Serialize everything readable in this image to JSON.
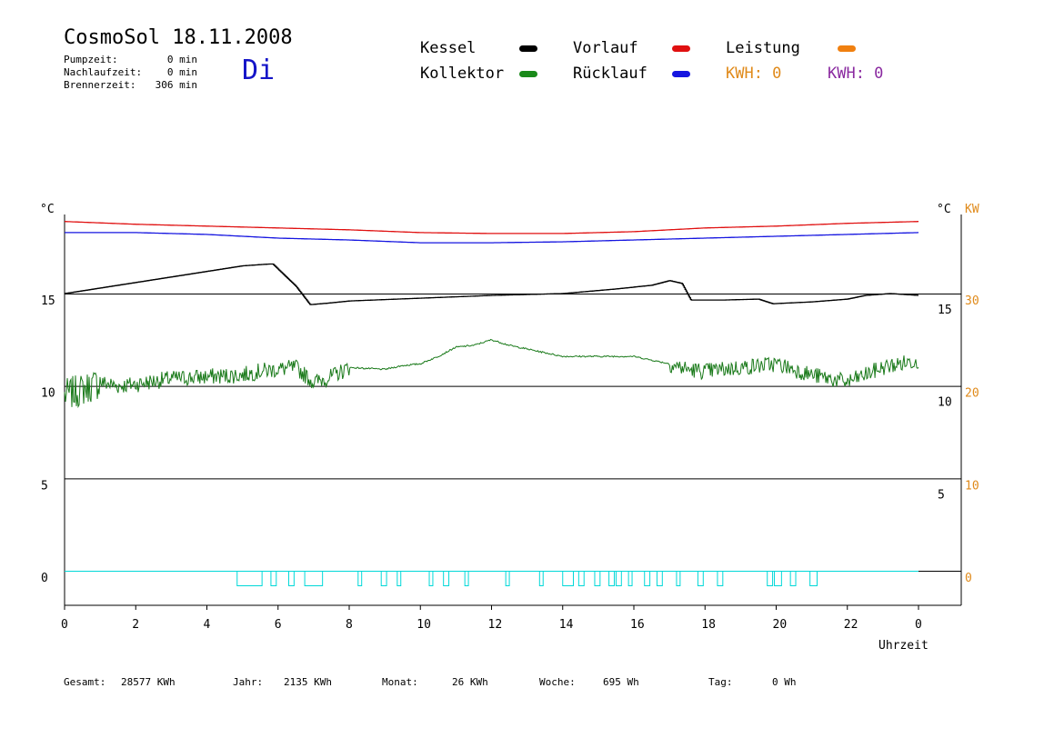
{
  "header": {
    "title": "CosmoSol 18.11.2008",
    "weekday": "Di",
    "stats": [
      {
        "label": "Pumpzeit:",
        "value": "0 min"
      },
      {
        "label": "Nachlaufzeit:",
        "value": "0 min"
      },
      {
        "label": "Brennerzeit:",
        "value": "306 min"
      }
    ]
  },
  "legend": {
    "items": [
      {
        "label": "Kessel",
        "color": "#000000"
      },
      {
        "label": "Kollektor",
        "color": "#1a8a1a"
      },
      {
        "label": "Vorlauf",
        "color": "#e01010"
      },
      {
        "label": "Rücklauf",
        "color": "#1515e0"
      },
      {
        "label": "Leistung",
        "color": "#f08010"
      }
    ],
    "kwh_orange": "KWH: 0",
    "kwh_purple": "KWH: 0",
    "orange_color": "#e08a1a",
    "purple_color": "#8a2aa0"
  },
  "footer": [
    {
      "label": "Gesamt:",
      "value": "28577 KWh"
    },
    {
      "label": "Jahr:",
      "value": "2135 KWh"
    },
    {
      "label": "Monat:",
      "value": "26 KWh"
    },
    {
      "label": "Woche:",
      "value": "695 Wh"
    },
    {
      "label": "Tag:",
      "value": "0 Wh"
    }
  ],
  "chart_data": {
    "type": "line",
    "xlabel": "Uhrzeit",
    "ylabel_left": "°C",
    "ylabel_right": "°C",
    "ylabel_right2": "KW",
    "xlim": [
      0,
      24
    ],
    "x_ticks": [
      "0",
      "2",
      "4",
      "6",
      "8",
      "10",
      "12",
      "14",
      "16",
      "18",
      "20",
      "22",
      "0"
    ],
    "left_ticks": [
      "15",
      "10",
      "5",
      "0"
    ],
    "right_ticks": [
      "15",
      "10",
      "5"
    ],
    "kw_ticks": [
      "30",
      "20",
      "10",
      "0"
    ],
    "series": [
      {
        "name": "Vorlauf",
        "color": "#e01010",
        "x": [
          0,
          2,
          4,
          6,
          8,
          10,
          12,
          14,
          16,
          18,
          20,
          22,
          24
        ],
        "y": [
          18.9,
          18.75,
          18.65,
          18.55,
          18.45,
          18.3,
          18.25,
          18.25,
          18.35,
          18.55,
          18.65,
          18.8,
          18.9
        ]
      },
      {
        "name": "Rücklauf",
        "color": "#1515e0",
        "x": [
          0,
          2,
          4,
          6,
          8,
          10,
          12,
          14,
          16,
          18,
          20,
          22,
          24
        ],
        "y": [
          18.3,
          18.3,
          18.2,
          18.0,
          17.9,
          17.75,
          17.75,
          17.8,
          17.9,
          18.0,
          18.1,
          18.2,
          18.3
        ]
      },
      {
        "name": "Kessel",
        "color": "#000000",
        "x": [
          0,
          1,
          2,
          3,
          4,
          5,
          5.75,
          5.85,
          6.5,
          6.9,
          7.5,
          8,
          10,
          12,
          14,
          15.5,
          16.5,
          17.0,
          17.35,
          17.6,
          18.5,
          19.5,
          19.9,
          21,
          22,
          22.5,
          23.2,
          24
        ],
        "y": [
          15.0,
          15.3,
          15.6,
          15.9,
          16.2,
          16.5,
          16.6,
          16.6,
          15.4,
          14.4,
          14.5,
          14.6,
          14.75,
          14.9,
          15.0,
          15.25,
          15.45,
          15.7,
          15.55,
          14.65,
          14.65,
          14.7,
          14.45,
          14.55,
          14.7,
          14.9,
          15.0,
          14.9
        ]
      },
      {
        "name": "Kollektor",
        "color": "#1a7a1a",
        "x": [
          0,
          0.5,
          1,
          1.5,
          2,
          3,
          4,
          5,
          5.5,
          6,
          6.5,
          7,
          7.5,
          8,
          9,
          9.5,
          10,
          10.5,
          11,
          11.5,
          12,
          12.5,
          13,
          14,
          15,
          16,
          17,
          17.5,
          18,
          19,
          20,
          21,
          22,
          23,
          23.5,
          24
        ],
        "y": [
          9.5,
          9.8,
          10.2,
          10.0,
          10.1,
          10.4,
          10.5,
          10.6,
          10.8,
          10.9,
          11.0,
          10.2,
          10.5,
          11.0,
          10.9,
          11.1,
          11.2,
          11.6,
          12.1,
          12.2,
          12.5,
          12.2,
          12.0,
          11.6,
          11.6,
          11.6,
          11.2,
          10.9,
          10.8,
          11.0,
          11.2,
          10.6,
          10.2,
          11.0,
          11.2,
          11.4
        ]
      }
    ],
    "pump_intervals": [
      [
        4.85,
        5.55
      ],
      [
        5.8,
        5.95
      ],
      [
        6.3,
        6.45
      ],
      [
        6.75,
        7.25
      ],
      [
        8.25,
        8.35
      ],
      [
        8.9,
        9.05
      ],
      [
        9.35,
        9.45
      ],
      [
        10.25,
        10.35
      ],
      [
        10.65,
        10.8
      ],
      [
        11.25,
        11.35
      ],
      [
        12.4,
        12.5
      ],
      [
        13.35,
        13.45
      ],
      [
        14.0,
        14.3
      ],
      [
        14.45,
        14.6
      ],
      [
        14.9,
        15.05
      ],
      [
        15.3,
        15.45
      ],
      [
        15.5,
        15.65
      ],
      [
        15.85,
        15.95
      ],
      [
        16.3,
        16.45
      ],
      [
        16.65,
        16.8
      ],
      [
        17.2,
        17.3
      ],
      [
        17.8,
        17.95
      ],
      [
        18.35,
        18.5
      ],
      [
        19.75,
        19.9
      ],
      [
        19.95,
        20.15
      ],
      [
        20.4,
        20.55
      ],
      [
        20.95,
        21.15
      ]
    ]
  }
}
